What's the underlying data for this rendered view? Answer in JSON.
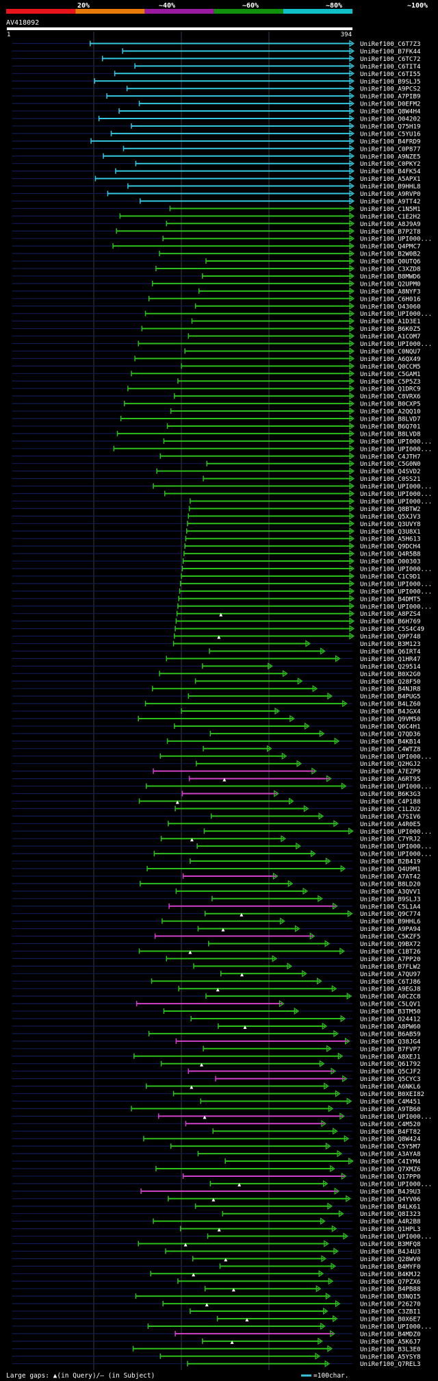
{
  "scale": {
    "labels": [
      "20%",
      "~40%",
      "~60%",
      "~80%",
      "~100%"
    ],
    "colors": [
      "#e8141c",
      "#e87a0a",
      "#9a1aa0",
      "#10900c",
      "#10c0c8"
    ]
  },
  "query": {
    "id": "AV418092",
    "start_label": "1",
    "end_label": "394"
  },
  "colors": {
    "cyan": "#33c8e0",
    "green": "#2cc01c",
    "magenta": "#d040c8"
  },
  "legend": {
    "gaps_text": "Large gaps: ▲(in Query)/— (in Subject)",
    "scale_text": "=100char."
  },
  "hits": [
    {
      "id": "UniRef100_C6T7Z3",
      "c": "cyan"
    },
    {
      "id": "UniRef100_B7FK44",
      "c": "cyan"
    },
    {
      "id": "UniRef100_C6TC72",
      "c": "cyan"
    },
    {
      "id": "UniRef100_C6TIT4",
      "c": "cyan"
    },
    {
      "id": "UniRef100_C6TI55",
      "c": "cyan"
    },
    {
      "id": "UniRef100_B9SLJ5",
      "c": "cyan"
    },
    {
      "id": "UniRef100_A9PCS2",
      "c": "cyan"
    },
    {
      "id": "UniRef100_A7PIB9",
      "c": "cyan"
    },
    {
      "id": "UniRef100_D0EFM2",
      "c": "cyan"
    },
    {
      "id": "UniRef100_Q8W4H4",
      "c": "cyan"
    },
    {
      "id": "UniRef100_O04202",
      "c": "cyan"
    },
    {
      "id": "UniRef100_Q75H19",
      "c": "cyan"
    },
    {
      "id": "UniRef100_C5YU16",
      "c": "cyan"
    },
    {
      "id": "UniRef100_B4FRD9",
      "c": "cyan"
    },
    {
      "id": "UniRef100_C0P877",
      "c": "cyan"
    },
    {
      "id": "UniRef100_A9NZE5",
      "c": "cyan"
    },
    {
      "id": "UniRef100_C0PKY2",
      "c": "cyan"
    },
    {
      "id": "UniRef100_B4FK54",
      "c": "cyan"
    },
    {
      "id": "UniRef100_A5APX1",
      "c": "cyan"
    },
    {
      "id": "UniRef100_B9HHL8",
      "c": "cyan"
    },
    {
      "id": "UniRef100_A9RVP0",
      "c": "cyan"
    },
    {
      "id": "UniRef100_A9TT42",
      "c": "cyan"
    },
    {
      "id": "UniRef100_C1N5M1",
      "c": "green"
    },
    {
      "id": "UniRef100_C1E2H2",
      "c": "green"
    },
    {
      "id": "UniRef100_A8J9A9",
      "c": "green"
    },
    {
      "id": "UniRef100_B7P2T8",
      "c": "green"
    },
    {
      "id": "UniRef100_UPI000...",
      "c": "green"
    },
    {
      "id": "UniRef100_Q4PMC7",
      "c": "green"
    },
    {
      "id": "UniRef100_B2W0B2",
      "c": "green"
    },
    {
      "id": "UniRef100_Q0UTQ6",
      "c": "green"
    },
    {
      "id": "UniRef100_C3XZD8",
      "c": "green"
    },
    {
      "id": "UniRef100_B8MWD6",
      "c": "green"
    },
    {
      "id": "UniRef100_Q2UPM0",
      "c": "green"
    },
    {
      "id": "UniRef100_A8NYF3",
      "c": "green"
    },
    {
      "id": "UniRef100_C6H016",
      "c": "green"
    },
    {
      "id": "UniRef100_O43060",
      "c": "green"
    },
    {
      "id": "UniRef100_UPI000...",
      "c": "green"
    },
    {
      "id": "UniRef100_A1D3E1",
      "c": "green"
    },
    {
      "id": "UniRef100_B6K0Z5",
      "c": "green"
    },
    {
      "id": "UniRef100_A1COM7",
      "c": "green"
    },
    {
      "id": "UniRef100_UPI000...",
      "c": "green"
    },
    {
      "id": "UniRef100_C0NQU7",
      "c": "green"
    },
    {
      "id": "UniRef100_A6QX49",
      "c": "green"
    },
    {
      "id": "UniRef100_Q0CCM5",
      "c": "green"
    },
    {
      "id": "UniRef100_C5GAM1",
      "c": "green"
    },
    {
      "id": "UniRef100_C5P5Z3",
      "c": "green"
    },
    {
      "id": "UniRef100_Q1DRC9",
      "c": "green"
    },
    {
      "id": "UniRef100_C8VRX6",
      "c": "green"
    },
    {
      "id": "UniRef100_B0CXP5",
      "c": "green"
    },
    {
      "id": "UniRef100_A2QQ10",
      "c": "green"
    },
    {
      "id": "UniRef100_B8LVD7",
      "c": "green"
    },
    {
      "id": "UniRef100_B6Q701",
      "c": "green"
    },
    {
      "id": "UniRef100_B8LVD8",
      "c": "green"
    },
    {
      "id": "UniRef100_UPI000...",
      "c": "green"
    },
    {
      "id": "UniRef100_UPI000...",
      "c": "green"
    },
    {
      "id": "UniRef100_C4JTH7",
      "c": "green"
    },
    {
      "id": "UniRef100_C5G0N0",
      "c": "green"
    },
    {
      "id": "UniRef100_Q4SVD2",
      "c": "green"
    },
    {
      "id": "UniRef100_C0SS21",
      "c": "green"
    },
    {
      "id": "UniRef100_UPI000...",
      "c": "green"
    },
    {
      "id": "UniRef100_UPI000...",
      "c": "green"
    },
    {
      "id": "UniRef100_UPI000...",
      "c": "green"
    },
    {
      "id": "UniRef100_Q8BTW2",
      "c": "green"
    },
    {
      "id": "UniRef100_Q5XJV3",
      "c": "green"
    },
    {
      "id": "UniRef100_Q3UVY8",
      "c": "green"
    },
    {
      "id": "UniRef100_Q3U8X1",
      "c": "green"
    },
    {
      "id": "UniRef100_A5H613",
      "c": "green"
    },
    {
      "id": "UniRef100_Q9DCH4",
      "c": "green"
    },
    {
      "id": "UniRef100_Q4R5B8",
      "c": "green"
    },
    {
      "id": "UniRef100_O00303",
      "c": "green"
    },
    {
      "id": "UniRef100_UPI000...",
      "c": "green"
    },
    {
      "id": "UniRef100_C1C9D1",
      "c": "green"
    },
    {
      "id": "UniRef100_UPI000...",
      "c": "green"
    },
    {
      "id": "UniRef100_UPI000...",
      "c": "green"
    },
    {
      "id": "UniRef100_B4DMT5",
      "c": "green"
    },
    {
      "id": "UniRef100_UPI000...",
      "c": "green"
    },
    {
      "id": "UniRef100_A8PZS4",
      "c": "green",
      "ql": true
    },
    {
      "id": "UniRef100_B6H769",
      "c": "green"
    },
    {
      "id": "UniRef100_C5S4C49",
      "c": "green"
    },
    {
      "id": "UniRef100_Q9P748",
      "c": "green",
      "ql": true
    },
    {
      "id": "UniRef100_B3M123",
      "c": "green"
    },
    {
      "id": "UniRef100_Q6IRT4",
      "c": "green"
    },
    {
      "id": "UniRef100_Q1HR47",
      "c": "green"
    },
    {
      "id": "UniRef100_Q29514",
      "c": "green"
    },
    {
      "id": "UniRef100_B0X2G0",
      "c": "green"
    },
    {
      "id": "UniRef100_Q28F50",
      "c": "green"
    },
    {
      "id": "UniRef100_B4NJR8",
      "c": "green"
    },
    {
      "id": "UniRef100_B4PUG5",
      "c": "green"
    },
    {
      "id": "UniRef100_B4LZ60",
      "c": "green"
    },
    {
      "id": "UniRef100_B4JGX4",
      "c": "green"
    },
    {
      "id": "UniRef100_Q9VM50",
      "c": "green"
    },
    {
      "id": "UniRef100_Q6C4H1",
      "c": "green"
    },
    {
      "id": "UniRef100_Q7QD36",
      "c": "green"
    },
    {
      "id": "UniRef100_B4KB14",
      "c": "green"
    },
    {
      "id": "UniRef100_C4WTZ8",
      "c": "green"
    },
    {
      "id": "UniRef100_UPI000...",
      "c": "green"
    },
    {
      "id": "UniRef100_Q2HGJ2",
      "c": "green"
    },
    {
      "id": "UniRef100_A7EZP9",
      "c": "magenta"
    },
    {
      "id": "UniRef100_A6RT95",
      "c": "magenta",
      "ql": true
    },
    {
      "id": "UniRef100_UPI000...",
      "c": "green"
    },
    {
      "id": "UniRef100_B6K3G3",
      "c": "magenta"
    },
    {
      "id": "UniRef100_C4P188",
      "c": "green",
      "ql": true
    },
    {
      "id": "UniRef100_C1LZU2",
      "c": "green"
    },
    {
      "id": "UniRef100_A7SIV6",
      "c": "green"
    },
    {
      "id": "UniRef100_A4R0E5",
      "c": "green"
    },
    {
      "id": "UniRef100_UPI000...",
      "c": "green"
    },
    {
      "id": "UniRef100_C7YRJ2",
      "c": "green",
      "ql": true
    },
    {
      "id": "UniRef100_UPI000...",
      "c": "green"
    },
    {
      "id": "UniRef100_UPI000...",
      "c": "green"
    },
    {
      "id": "UniRef100_B2B419",
      "c": "green"
    },
    {
      "id": "UniRef100_Q4U9M1",
      "c": "green"
    },
    {
      "id": "UniRef100_A7AT42",
      "c": "magenta"
    },
    {
      "id": "UniRef100_B8LD20",
      "c": "green"
    },
    {
      "id": "UniRef100_A3QVV1",
      "c": "green"
    },
    {
      "id": "UniRef100_B9SLJ3",
      "c": "green"
    },
    {
      "id": "UniRef100_C5L1A4",
      "c": "magenta"
    },
    {
      "id": "UniRef100_Q9C774",
      "c": "green",
      "ql": true
    },
    {
      "id": "UniRef100_B9HHL6",
      "c": "green"
    },
    {
      "id": "UniRef100_A9PA94",
      "c": "green",
      "ql": true
    },
    {
      "id": "UniRef100_C5KZF5",
      "c": "magenta"
    },
    {
      "id": "UniRef100_Q9BX72",
      "c": "green"
    },
    {
      "id": "UniRef100_C1BT26",
      "c": "green",
      "ql": true
    },
    {
      "id": "UniRef100_A7PP20",
      "c": "green"
    },
    {
      "id": "UniRef100_B7FLW2",
      "c": "green"
    },
    {
      "id": "UniRef100_A7QU97",
      "c": "green",
      "ql": true
    },
    {
      "id": "UniRef100_C6TJ86",
      "c": "green"
    },
    {
      "id": "UniRef100_A9EGJ8",
      "c": "green",
      "ql": true
    },
    {
      "id": "UniRef100_A0CZC8",
      "c": "green"
    },
    {
      "id": "UniRef100_C5LQV1",
      "c": "magenta"
    },
    {
      "id": "UniRef100_B3TM50",
      "c": "green"
    },
    {
      "id": "UniRef100_O24412",
      "c": "green"
    },
    {
      "id": "UniRef100_A8PW60",
      "c": "green",
      "ql": true
    },
    {
      "id": "UniRef100_B6AB59",
      "c": "green"
    },
    {
      "id": "UniRef100_Q38JG4",
      "c": "magenta"
    },
    {
      "id": "UniRef100_B7FVP7",
      "c": "green"
    },
    {
      "id": "UniRef100_A8XEJ1",
      "c": "green"
    },
    {
      "id": "UniRef100_Q61792",
      "c": "green",
      "ql": true
    },
    {
      "id": "UniRef100_Q5CJF2",
      "c": "magenta"
    },
    {
      "id": "UniRef100_Q5CYC3",
      "c": "magenta"
    },
    {
      "id": "UniRef100_A6NKL6",
      "c": "green",
      "ql": true
    },
    {
      "id": "UniRef100_B0XEI82",
      "c": "green"
    },
    {
      "id": "UniRef100_C4M451",
      "c": "green"
    },
    {
      "id": "UniRef100_A9TB60",
      "c": "green"
    },
    {
      "id": "UniRef100_UPI000...",
      "c": "magenta",
      "ql": true
    },
    {
      "id": "UniRef100_C4M520",
      "c": "magenta"
    },
    {
      "id": "UniRef100_B4FT82",
      "c": "green"
    },
    {
      "id": "UniRef100_Q8W424",
      "c": "green"
    },
    {
      "id": "UniRef100_C5Y5M7",
      "c": "green"
    },
    {
      "id": "UniRef100_A3AYA8",
      "c": "green"
    },
    {
      "id": "UniRef100_C4IYM4",
      "c": "green"
    },
    {
      "id": "UniRef100_Q7XMZ6",
      "c": "green"
    },
    {
      "id": "UniRef100_Q17PP0",
      "c": "magenta"
    },
    {
      "id": "UniRef100_UPI000...",
      "c": "green",
      "ql": true
    },
    {
      "id": "UniRef100_B4J9U3",
      "c": "magenta"
    },
    {
      "id": "UniRef100_Q4YV06",
      "c": "green",
      "ql": true
    },
    {
      "id": "UniRef100_B4LK61",
      "c": "green"
    },
    {
      "id": "UniRef100_Q8I323",
      "c": "green"
    },
    {
      "id": "UniRef100_A4R2B8",
      "c": "green"
    },
    {
      "id": "UniRef100_Q1HPL3",
      "c": "green",
      "ql": true
    },
    {
      "id": "UniRef100_UPI000...",
      "c": "green"
    },
    {
      "id": "UniRef100_B3MFQ8",
      "c": "green",
      "ql": true
    },
    {
      "id": "UniRef100_B4J4U3",
      "c": "green"
    },
    {
      "id": "UniRef100_Q28WV0",
      "c": "green",
      "ql": true
    },
    {
      "id": "UniRef100_B4MYF0",
      "c": "green"
    },
    {
      "id": "UniRef100_B4KMJ2",
      "c": "green",
      "ql": true
    },
    {
      "id": "UniRef100_Q7PZX6",
      "c": "green"
    },
    {
      "id": "UniRef100_B4PB88",
      "c": "green",
      "ql": true
    },
    {
      "id": "UniRef100_B3NQI5",
      "c": "green"
    },
    {
      "id": "UniRef100_P26270",
      "c": "green",
      "ql": true
    },
    {
      "id": "UniRef100_C3ZBI1",
      "c": "green"
    },
    {
      "id": "UniRef100_B0X6E7",
      "c": "green",
      "ql": true
    },
    {
      "id": "UniRef100_UPI000...",
      "c": "green"
    },
    {
      "id": "UniRef100_B4MDZ0",
      "c": "magenta"
    },
    {
      "id": "UniRef100_A5K6J7",
      "c": "green",
      "ql": true
    },
    {
      "id": "UniRef100_B3L3E0",
      "c": "green"
    },
    {
      "id": "UniRef100_A5YSY8",
      "c": "green"
    },
    {
      "id": "UniRef100_Q7REL3",
      "c": "green"
    }
  ]
}
